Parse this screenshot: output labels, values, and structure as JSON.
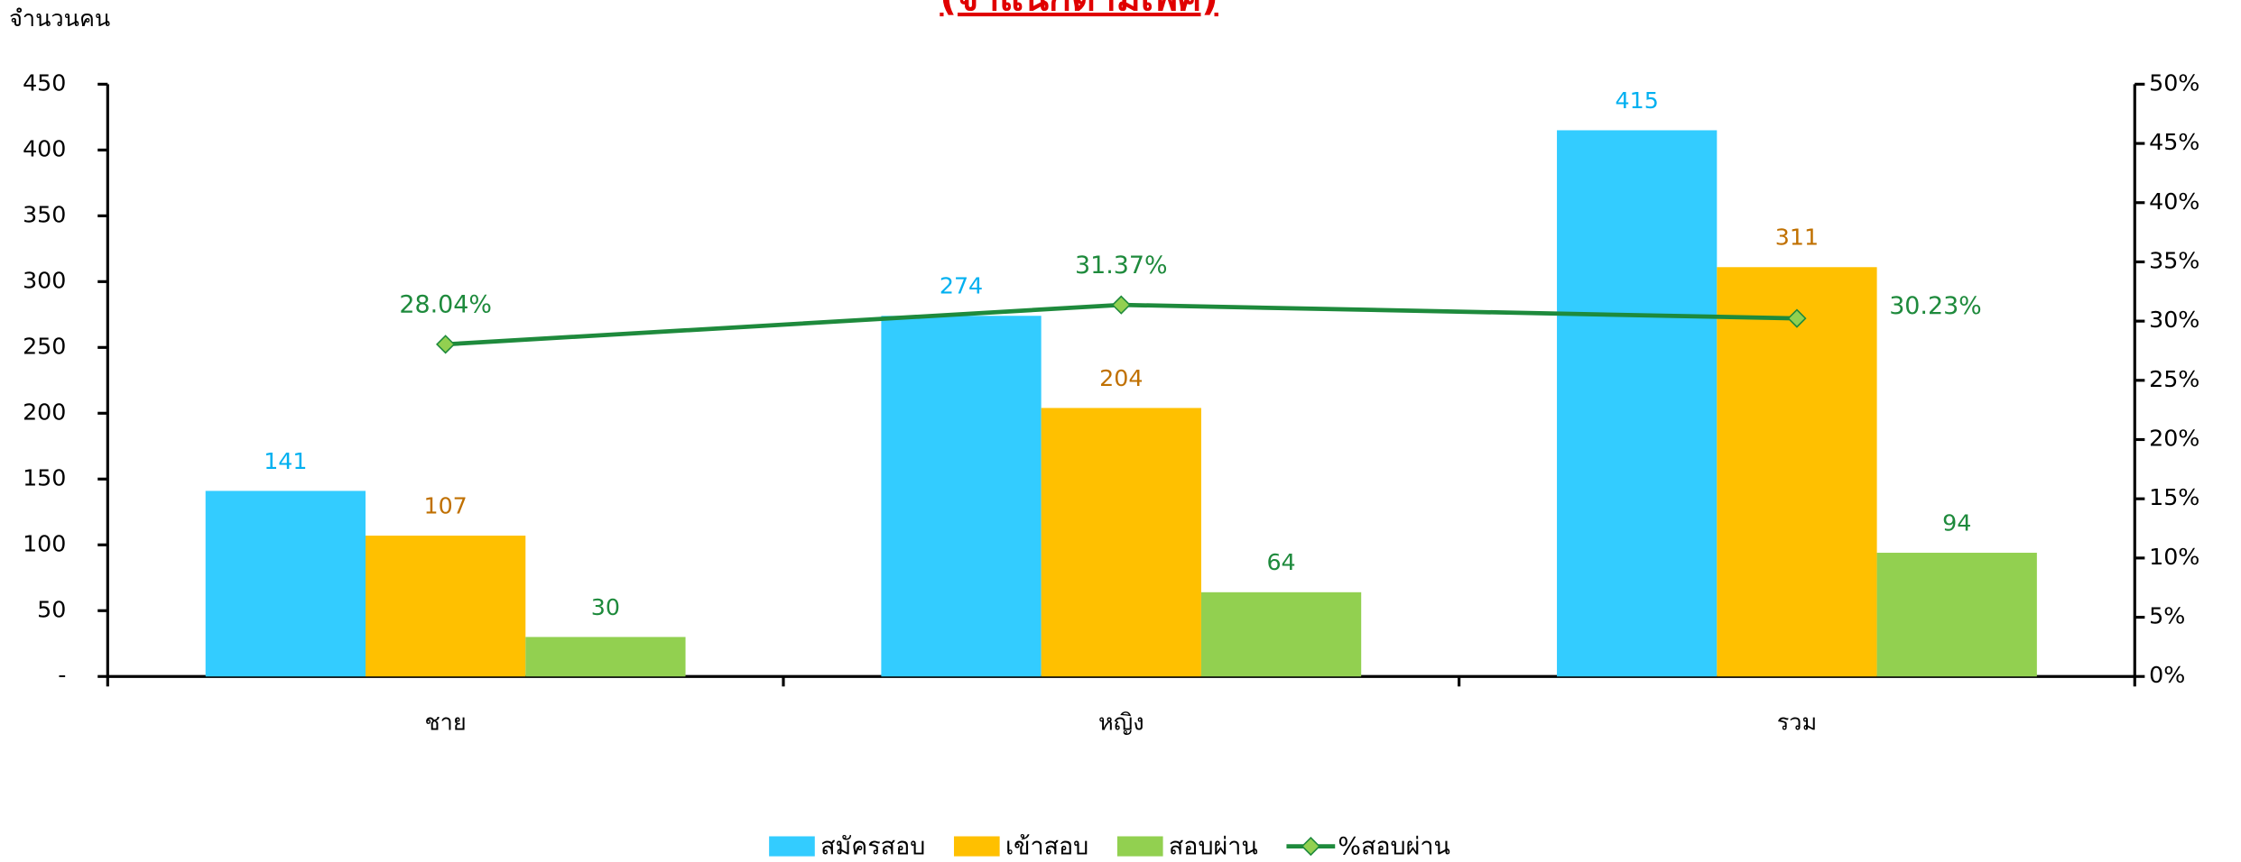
{
  "chart_data": {
    "type": "bar",
    "title": "(จำแนกตามเพศ)",
    "y_label": "จำนวนคน",
    "categories": [
      "ชาย",
      "หญิง",
      "รวม"
    ],
    "series": [
      {
        "name": "สมัครสอบ",
        "color": "#33ccff",
        "label_color": "#00b0f0",
        "values": [
          141,
          274,
          415
        ]
      },
      {
        "name": "เข้าสอบ",
        "color": "#ffc000",
        "label_color": "#c07000",
        "values": [
          107,
          204,
          311
        ]
      },
      {
        "name": "สอบผ่าน",
        "color": "#92d050",
        "label_color": "#1e8a3c",
        "values": [
          30,
          64,
          94
        ]
      },
      {
        "name": "%สอบผ่าน",
        "type": "line",
        "axis": "y2",
        "color": "#1e8a3c",
        "marker_color": "#92d050",
        "values": [
          28.04,
          31.37,
          30.23
        ],
        "value_labels": [
          "28.04%",
          "31.37%",
          "30.23%"
        ]
      }
    ],
    "ylim": [
      0,
      450
    ],
    "yticks": [
      {
        "value": 0,
        "label": "-"
      },
      50,
      100,
      150,
      200,
      250,
      300,
      350,
      400,
      450
    ],
    "y2lim": [
      0,
      50
    ],
    "y2ticks": [
      {
        "value": 0,
        "label": "0%"
      },
      {
        "value": 5,
        "label": "5%"
      },
      {
        "value": 10,
        "label": "10%"
      },
      {
        "value": 15,
        "label": "15%"
      },
      {
        "value": 20,
        "label": "20%"
      },
      {
        "value": 25,
        "label": "25%"
      },
      {
        "value": 30,
        "label": "30%"
      },
      {
        "value": 35,
        "label": "35%"
      },
      {
        "value": 40,
        "label": "40%"
      },
      {
        "value": 45,
        "label": "45%"
      },
      {
        "value": 50,
        "label": "50%"
      }
    ],
    "legend": "bottom"
  }
}
